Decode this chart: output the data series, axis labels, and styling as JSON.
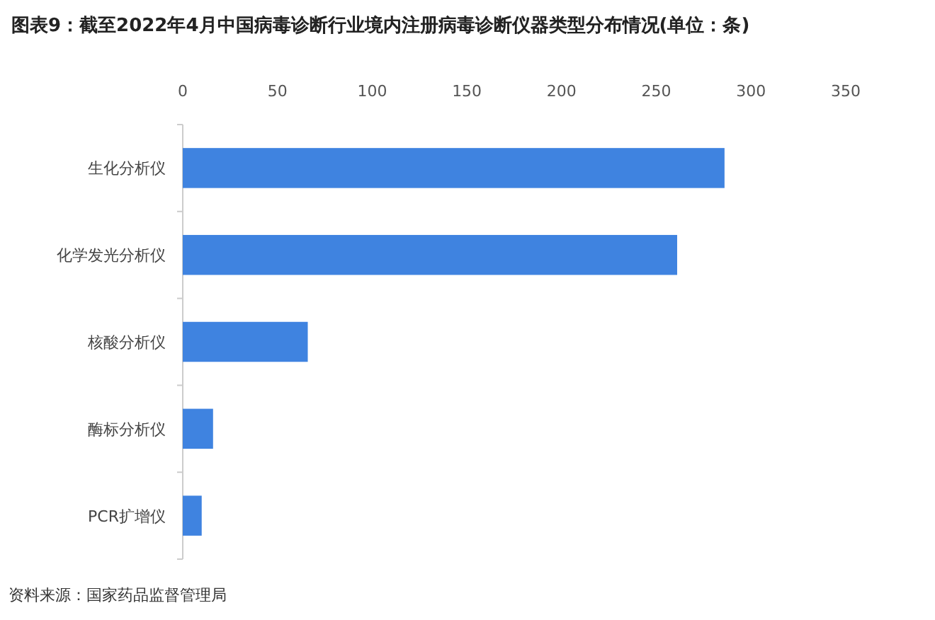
{
  "chart_data": {
    "type": "bar",
    "orientation": "horizontal",
    "title": "图表9：截至2022年4月中国病毒诊断行业境内注册病毒诊断仪器类型分布情况(单位：条)",
    "categories": [
      "生化分析仪",
      "化学发光分析仪",
      "核酸分析仪",
      "酶标分析仪",
      "PCR扩增仪"
    ],
    "values": [
      286,
      261,
      66,
      16,
      10
    ],
    "color": "#3f83e0",
    "xlim": [
      0,
      350
    ],
    "xticks": [
      0,
      50,
      100,
      150,
      200,
      250,
      300,
      350
    ],
    "grid": false,
    "annotations": [
      "资料来源：国家药品监督管理局"
    ]
  }
}
